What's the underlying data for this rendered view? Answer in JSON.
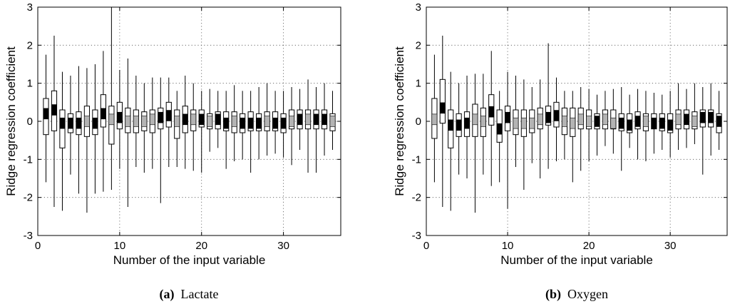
{
  "chart_data": [
    {
      "type": "boxplot",
      "title": "",
      "xlabel": "Number of the input variable",
      "ylabel": "Ridge regression coefficient",
      "xlim": [
        0,
        37
      ],
      "ylim": [
        -3,
        3
      ],
      "xticks": [
        0,
        10,
        20,
        30
      ],
      "yticks": [
        -3,
        -2,
        -1,
        0,
        1,
        2,
        3
      ],
      "grid": true,
      "caption_label": "(a)",
      "caption_text": "Lactate",
      "boxes": [
        {
          "x": 1,
          "whisker_low": -1.6,
          "q1": -0.35,
          "median": 0.2,
          "q3": 0.6,
          "whisker_high": 1.75,
          "highlight": "black"
        },
        {
          "x": 2,
          "whisker_low": -2.25,
          "q1": -0.25,
          "median": 0.3,
          "q3": 0.8,
          "whisker_high": 2.25,
          "highlight": "black"
        },
        {
          "x": 3,
          "whisker_low": -2.35,
          "q1": -0.7,
          "median": -0.05,
          "q3": 0.3,
          "whisker_high": 1.3,
          "highlight": "black"
        },
        {
          "x": 4,
          "whisker_low": -1.4,
          "q1": -0.3,
          "median": -0.05,
          "q3": 0.2,
          "whisker_high": 1.2,
          "highlight": "black"
        },
        {
          "x": 5,
          "whisker_low": -1.9,
          "q1": -0.35,
          "median": -0.05,
          "q3": 0.25,
          "whisker_high": 1.45,
          "highlight": "black"
        },
        {
          "x": 6,
          "whisker_low": -2.4,
          "q1": -0.4,
          "median": 0.0,
          "q3": 0.4,
          "whisker_high": 1.4,
          "highlight": "gray"
        },
        {
          "x": 7,
          "whisker_low": -1.9,
          "q1": -0.35,
          "median": -0.05,
          "q3": 0.3,
          "whisker_high": 1.5,
          "highlight": "black"
        },
        {
          "x": 8,
          "whisker_low": -1.85,
          "q1": -0.15,
          "median": 0.2,
          "q3": 0.7,
          "whisker_high": 1.85,
          "highlight": "black"
        },
        {
          "x": 9,
          "whisker_low": -1.8,
          "q1": -0.6,
          "median": 0.05,
          "q3": 0.4,
          "whisker_high": 3.0,
          "highlight": "gray"
        },
        {
          "x": 10,
          "whisker_low": -1.25,
          "q1": -0.2,
          "median": 0.1,
          "q3": 0.5,
          "whisker_high": 1.35,
          "highlight": "black"
        },
        {
          "x": 11,
          "whisker_low": -2.25,
          "q1": -0.3,
          "median": 0.0,
          "q3": 0.35,
          "whisker_high": 1.65,
          "highlight": "gray"
        },
        {
          "x": 12,
          "whisker_low": -1.2,
          "q1": -0.3,
          "median": 0.0,
          "q3": 0.3,
          "whisker_high": 1.2,
          "highlight": "gray"
        },
        {
          "x": 13,
          "whisker_low": -1.35,
          "q1": -0.25,
          "median": 0.0,
          "q3": 0.25,
          "whisker_high": 1.0,
          "highlight": "gray"
        },
        {
          "x": 14,
          "whisker_low": -1.25,
          "q1": -0.3,
          "median": 0.05,
          "q3": 0.3,
          "whisker_high": 1.15,
          "highlight": "gray"
        },
        {
          "x": 15,
          "whisker_low": -2.15,
          "q1": -0.2,
          "median": 0.1,
          "q3": 0.35,
          "whisker_high": 1.15,
          "highlight": "black"
        },
        {
          "x": 16,
          "whisker_low": -1.2,
          "q1": -0.15,
          "median": 0.15,
          "q3": 0.5,
          "whisker_high": 1.15,
          "highlight": "black"
        },
        {
          "x": 17,
          "whisker_low": -1.2,
          "q1": -0.45,
          "median": 0.0,
          "q3": 0.3,
          "whisker_high": 0.8,
          "highlight": "gray"
        },
        {
          "x": 18,
          "whisker_low": -1.25,
          "q1": -0.3,
          "median": 0.05,
          "q3": 0.4,
          "whisker_high": 1.2,
          "highlight": "black"
        },
        {
          "x": 19,
          "whisker_low": -1.3,
          "q1": -0.25,
          "median": 0.05,
          "q3": 0.3,
          "whisker_high": 1.0,
          "highlight": "gray"
        },
        {
          "x": 20,
          "whisker_low": -1.35,
          "q1": -0.15,
          "median": 0.05,
          "q3": 0.3,
          "whisker_high": 0.8,
          "highlight": "black"
        },
        {
          "x": 21,
          "whisker_low": -0.8,
          "q1": -0.2,
          "median": 0.0,
          "q3": 0.2,
          "whisker_high": 0.85,
          "highlight": "gray"
        },
        {
          "x": 22,
          "whisker_low": -0.7,
          "q1": -0.2,
          "median": 0.05,
          "q3": 0.25,
          "whisker_high": 0.8,
          "highlight": "black"
        },
        {
          "x": 23,
          "whisker_low": -1.25,
          "q1": -0.25,
          "median": -0.05,
          "q3": 0.25,
          "whisker_high": 0.8,
          "highlight": "black"
        },
        {
          "x": 24,
          "whisker_low": -1.05,
          "q1": -0.3,
          "median": 0.0,
          "q3": 0.25,
          "whisker_high": 0.95,
          "highlight": "gray"
        },
        {
          "x": 25,
          "whisker_low": -1.0,
          "q1": -0.3,
          "median": -0.05,
          "q3": 0.2,
          "whisker_high": 0.8,
          "highlight": "black"
        },
        {
          "x": 26,
          "whisker_low": -1.35,
          "q1": -0.25,
          "median": -0.05,
          "q3": 0.25,
          "whisker_high": 0.8,
          "highlight": "black"
        },
        {
          "x": 27,
          "whisker_low": -1.0,
          "q1": -0.25,
          "median": -0.05,
          "q3": 0.2,
          "whisker_high": 0.9,
          "highlight": "black"
        },
        {
          "x": 28,
          "whisker_low": -0.9,
          "q1": -0.25,
          "median": 0.0,
          "q3": 0.25,
          "whisker_high": 1.0,
          "highlight": "gray"
        },
        {
          "x": 29,
          "whisker_low": -0.85,
          "q1": -0.25,
          "median": -0.05,
          "q3": 0.25,
          "whisker_high": 0.8,
          "highlight": "black"
        },
        {
          "x": 30,
          "whisker_low": -0.95,
          "q1": -0.3,
          "median": -0.05,
          "q3": 0.2,
          "whisker_high": 0.8,
          "highlight": "black"
        },
        {
          "x": 31,
          "whisker_low": -1.15,
          "q1": -0.2,
          "median": 0.0,
          "q3": 0.3,
          "whisker_high": 0.9,
          "highlight": "gray"
        },
        {
          "x": 32,
          "whisker_low": -0.75,
          "q1": -0.2,
          "median": 0.05,
          "q3": 0.3,
          "whisker_high": 0.85,
          "highlight": "black"
        },
        {
          "x": 33,
          "whisker_low": -1.35,
          "q1": -0.2,
          "median": 0.05,
          "q3": 0.3,
          "whisker_high": 1.1,
          "highlight": "gray"
        },
        {
          "x": 34,
          "whisker_low": -1.35,
          "q1": -0.2,
          "median": 0.05,
          "q3": 0.3,
          "whisker_high": 0.9,
          "highlight": "black"
        },
        {
          "x": 35,
          "whisker_low": -0.9,
          "q1": -0.2,
          "median": 0.05,
          "q3": 0.3,
          "whisker_high": 1.0,
          "highlight": "black"
        },
        {
          "x": 36,
          "whisker_low": -0.75,
          "q1": -0.25,
          "median": 0.0,
          "q3": 0.2,
          "whisker_high": 0.8,
          "highlight": "gray"
        }
      ]
    },
    {
      "type": "boxplot",
      "title": "",
      "xlabel": "Number of the input variable",
      "ylabel": "Ridge regression coefficient",
      "xlim": [
        0,
        37
      ],
      "ylim": [
        -3,
        3
      ],
      "xticks": [
        0,
        10,
        20,
        30
      ],
      "yticks": [
        -3,
        -2,
        -1,
        0,
        1,
        2,
        3
      ],
      "grid": true,
      "caption_label": "(b)",
      "caption_text": "Oxygen",
      "boxes": [
        {
          "x": 1,
          "whisker_low": -1.6,
          "q1": -0.45,
          "median": 0.05,
          "q3": 0.6,
          "whisker_high": 1.75,
          "highlight": "gray"
        },
        {
          "x": 2,
          "whisker_low": -2.25,
          "q1": -0.05,
          "median": 0.35,
          "q3": 1.1,
          "whisker_high": 2.25,
          "highlight": "black"
        },
        {
          "x": 3,
          "whisker_low": -2.35,
          "q1": -0.7,
          "median": -0.1,
          "q3": 0.3,
          "whisker_high": 1.3,
          "highlight": "black"
        },
        {
          "x": 4,
          "whisker_low": -1.4,
          "q1": -0.4,
          "median": -0.1,
          "q3": 0.2,
          "whisker_high": 1.0,
          "highlight": "black"
        },
        {
          "x": 5,
          "whisker_low": -1.5,
          "q1": -0.4,
          "median": -0.05,
          "q3": 0.25,
          "whisker_high": 1.2,
          "highlight": "black"
        },
        {
          "x": 6,
          "whisker_low": -2.4,
          "q1": -0.4,
          "median": 0.05,
          "q3": 0.45,
          "whisker_high": 1.25,
          "highlight": "gray"
        },
        {
          "x": 7,
          "whisker_low": -1.4,
          "q1": -0.4,
          "median": 0.0,
          "q3": 0.35,
          "whisker_high": 1.25,
          "highlight": "gray"
        },
        {
          "x": 8,
          "whisker_low": -1.7,
          "q1": -0.1,
          "median": 0.25,
          "q3": 0.7,
          "whisker_high": 1.85,
          "highlight": "black"
        },
        {
          "x": 9,
          "whisker_low": -1.6,
          "q1": -0.55,
          "median": -0.2,
          "q3": 0.3,
          "whisker_high": 0.8,
          "highlight": "black"
        },
        {
          "x": 10,
          "whisker_low": -2.3,
          "q1": -0.25,
          "median": 0.1,
          "q3": 0.4,
          "whisker_high": 1.3,
          "highlight": "black"
        },
        {
          "x": 11,
          "whisker_low": -1.2,
          "q1": -0.35,
          "median": -0.05,
          "q3": 0.3,
          "whisker_high": 1.2,
          "highlight": "gray"
        },
        {
          "x": 12,
          "whisker_low": -1.8,
          "q1": -0.4,
          "median": -0.05,
          "q3": 0.3,
          "whisker_high": 1.1,
          "highlight": "gray"
        },
        {
          "x": 13,
          "whisker_low": -1.1,
          "q1": -0.3,
          "median": -0.05,
          "q3": 0.3,
          "whisker_high": 0.9,
          "highlight": "gray"
        },
        {
          "x": 14,
          "whisker_low": -1.5,
          "q1": -0.2,
          "median": 0.05,
          "q3": 0.35,
          "whisker_high": 1.1,
          "highlight": "gray"
        },
        {
          "x": 15,
          "whisker_low": -1.25,
          "q1": -0.1,
          "median": 0.1,
          "q3": 0.4,
          "whisker_high": 2.05,
          "highlight": "black"
        },
        {
          "x": 16,
          "whisker_low": -1.05,
          "q1": -0.15,
          "median": 0.15,
          "q3": 0.5,
          "whisker_high": 1.15,
          "highlight": "black"
        },
        {
          "x": 17,
          "whisker_low": -1.0,
          "q1": -0.35,
          "median": 0.0,
          "q3": 0.35,
          "whisker_high": 0.8,
          "highlight": "gray"
        },
        {
          "x": 18,
          "whisker_low": -1.6,
          "q1": -0.4,
          "median": -0.05,
          "q3": 0.35,
          "whisker_high": 0.8,
          "highlight": "gray"
        },
        {
          "x": 19,
          "whisker_low": -1.3,
          "q1": -0.2,
          "median": 0.05,
          "q3": 0.35,
          "whisker_high": 0.9,
          "highlight": "gray"
        },
        {
          "x": 20,
          "whisker_low": -1.05,
          "q1": -0.2,
          "median": 0.0,
          "q3": 0.3,
          "whisker_high": 0.85,
          "highlight": "gray"
        },
        {
          "x": 21,
          "whisker_low": -0.9,
          "q1": -0.2,
          "median": 0.0,
          "q3": 0.2,
          "whisker_high": 0.7,
          "highlight": "black"
        },
        {
          "x": 22,
          "whisker_low": -0.65,
          "q1": -0.2,
          "median": 0.05,
          "q3": 0.3,
          "whisker_high": 0.8,
          "highlight": "gray"
        },
        {
          "x": 23,
          "whisker_low": -0.85,
          "q1": -0.2,
          "median": -0.05,
          "q3": 0.3,
          "whisker_high": 0.85,
          "highlight": "gray"
        },
        {
          "x": 24,
          "whisker_low": -1.3,
          "q1": -0.25,
          "median": -0.05,
          "q3": 0.2,
          "whisker_high": 0.9,
          "highlight": "black"
        },
        {
          "x": 25,
          "whisker_low": -0.7,
          "q1": -0.3,
          "median": -0.1,
          "q3": 0.2,
          "whisker_high": 0.7,
          "highlight": "black"
        },
        {
          "x": 26,
          "whisker_low": -1.0,
          "q1": -0.2,
          "median": 0.0,
          "q3": 0.25,
          "whisker_high": 0.85,
          "highlight": "black"
        },
        {
          "x": 27,
          "whisker_low": -1.05,
          "q1": -0.25,
          "median": 0.0,
          "q3": 0.2,
          "whisker_high": 0.8,
          "highlight": "gray"
        },
        {
          "x": 28,
          "whisker_low": -0.85,
          "q1": -0.2,
          "median": -0.05,
          "q3": 0.2,
          "whisker_high": 0.75,
          "highlight": "black"
        },
        {
          "x": 29,
          "whisker_low": -0.75,
          "q1": -0.25,
          "median": -0.05,
          "q3": 0.2,
          "whisker_high": 0.7,
          "highlight": "black"
        },
        {
          "x": 30,
          "whisker_low": -0.95,
          "q1": -0.3,
          "median": -0.1,
          "q3": 0.2,
          "whisker_high": 0.8,
          "highlight": "black"
        },
        {
          "x": 31,
          "whisker_low": -0.75,
          "q1": -0.2,
          "median": 0.05,
          "q3": 0.3,
          "whisker_high": 1.0,
          "highlight": "gray"
        },
        {
          "x": 32,
          "whisker_low": -0.7,
          "q1": -0.2,
          "median": 0.05,
          "q3": 0.3,
          "whisker_high": 0.85,
          "highlight": "black"
        },
        {
          "x": 33,
          "whisker_low": -0.6,
          "q1": -0.2,
          "median": 0.0,
          "q3": 0.25,
          "whisker_high": 1.0,
          "highlight": "gray"
        },
        {
          "x": 34,
          "whisker_low": -1.4,
          "q1": -0.15,
          "median": 0.1,
          "q3": 0.3,
          "whisker_high": 0.9,
          "highlight": "black"
        },
        {
          "x": 35,
          "whisker_low": -0.9,
          "q1": -0.15,
          "median": 0.1,
          "q3": 0.3,
          "whisker_high": 1.0,
          "highlight": "black"
        },
        {
          "x": 36,
          "whisker_low": -0.75,
          "q1": -0.3,
          "median": 0.0,
          "q3": 0.2,
          "whisker_high": 0.8,
          "highlight": "black"
        }
      ]
    }
  ],
  "colors": {
    "box_fill": "#ffffff",
    "median_black": "#000000",
    "median_gray": "#b4b4b4",
    "grid": "#555555"
  }
}
